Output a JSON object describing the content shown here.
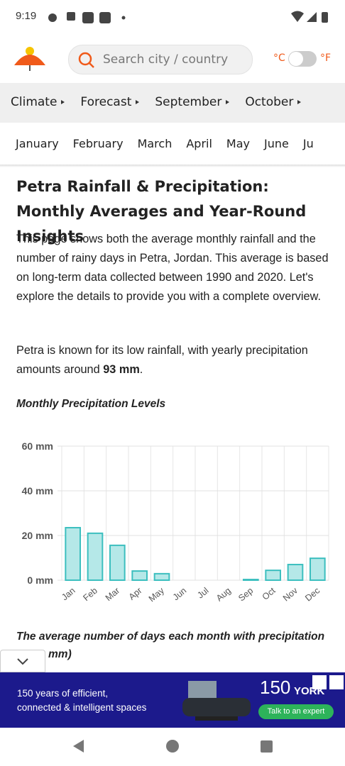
{
  "status_bar": {
    "time": "9:19"
  },
  "header": {
    "search_placeholder": "Search city / country",
    "unit_c": "°C",
    "unit_f": "°F"
  },
  "nav": [
    "Climate",
    "Forecast",
    "September",
    "October"
  ],
  "months_nav": [
    "January",
    "February",
    "March",
    "April",
    "May",
    "June",
    "Ju"
  ],
  "article": {
    "title": "Petra Rainfall & Precipitation: Monthly Averages and Year-Round Insights",
    "paragraph1": "This page shows both the average monthly rainfall and the number of rainy days in Petra, Jordan. This average is based on long-term data collected between 1990 and 2020. Let's explore the details to provide you with a complete overview.",
    "paragraph2_start": "Petra is known for its low rainfall, with yearly precipitation amounts around ",
    "paragraph2_bold": "93 mm",
    "paragraph2_end": ".",
    "chart_heading": "Monthly Precipitation Levels",
    "next_heading": "The average number of days each month with precipitation",
    "next_heading_cut": "mm)"
  },
  "chart_data": {
    "type": "bar",
    "categories": [
      "Jan",
      "Feb",
      "Mar",
      "Apr",
      "May",
      "Jun",
      "Jul",
      "Aug",
      "Sep",
      "Oct",
      "Nov",
      "Dec"
    ],
    "values": [
      23.5,
      21,
      15.6,
      4.1,
      2.9,
      0,
      0,
      0,
      0.3,
      4.4,
      7,
      9.8
    ],
    "color": "#b5e8e8",
    "edge_color": "#3cbfbf",
    "ylim": [
      0,
      60
    ],
    "yticks": [
      {
        "value": 0,
        "label": "0 mm"
      },
      {
        "value": 20,
        "label": "20 mm"
      },
      {
        "value": 40,
        "label": "40 mm"
      },
      {
        "value": 60,
        "label": "60 mm"
      }
    ],
    "grid": true
  },
  "ad": {
    "line1": "150 years of efficient,",
    "line2": "connected & intelligent spaces",
    "brand_number": "150",
    "brand": "YORK",
    "cta": "Talk to an expert"
  }
}
